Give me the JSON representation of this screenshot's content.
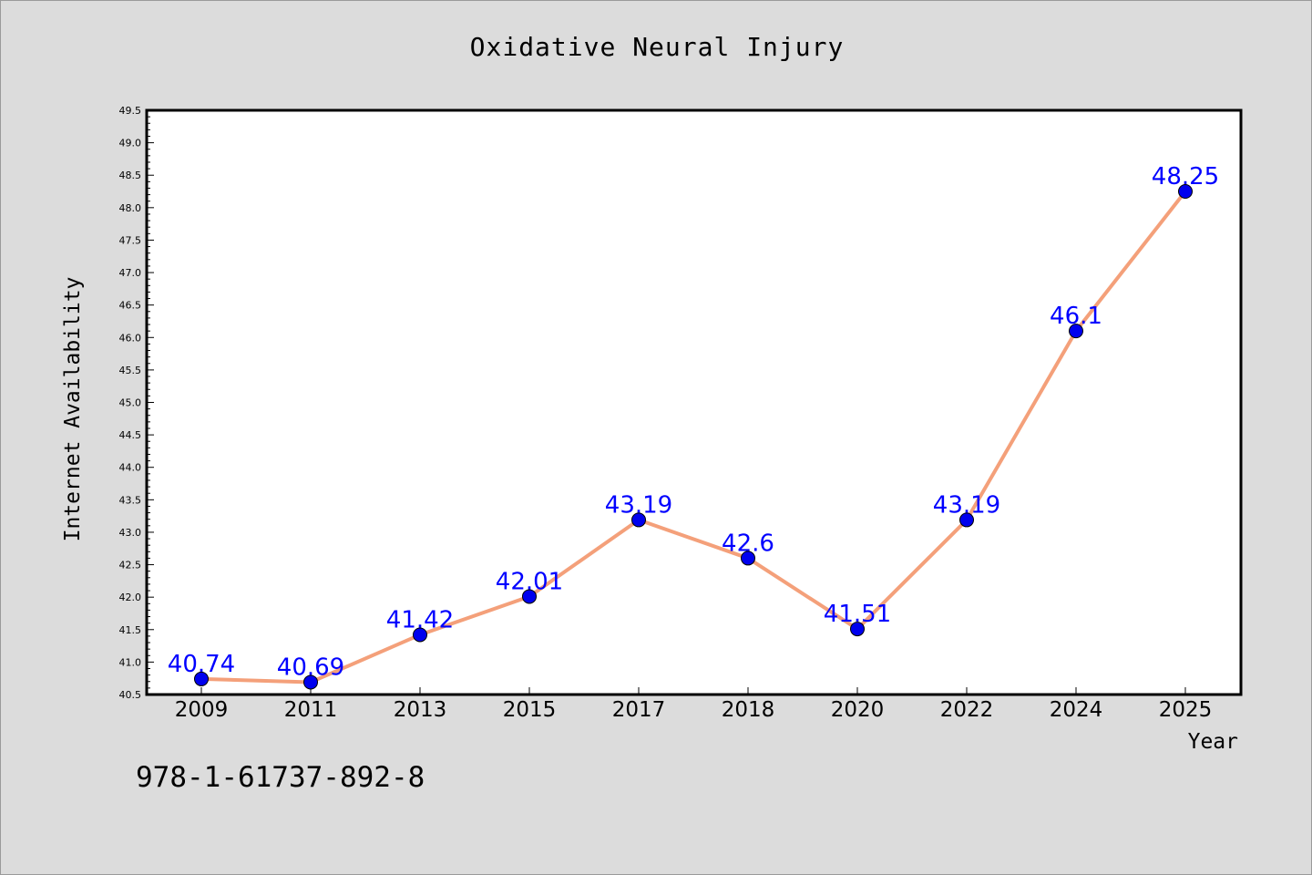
{
  "chart_data": {
    "type": "line",
    "title": "Oxidative Neural Injury",
    "xlabel": "Year",
    "ylabel": "Internet Availability",
    "categories": [
      "2009",
      "2011",
      "2013",
      "2015",
      "2017",
      "2018",
      "2020",
      "2022",
      "2024",
      "2025"
    ],
    "series": [
      {
        "values": [
          40.74,
          40.69,
          41.42,
          42.01,
          43.19,
          42.6,
          41.51,
          43.19,
          46.1,
          48.25
        ],
        "data_labels": [
          "40.74",
          "40.69",
          "41.42",
          "42.01",
          "43.19",
          "42.6",
          "41.51",
          "43.19",
          "46.1",
          "48.25"
        ],
        "line_color": "#f4a07a",
        "marker_color": "#0000ee"
      }
    ],
    "ylim": [
      40.5,
      49.5
    ],
    "yticks": [
      "40.5",
      "41.0",
      "41.5",
      "42.0",
      "42.5",
      "43.0",
      "43.5",
      "44.0",
      "44.5",
      "45.0",
      "45.5",
      "46.0",
      "46.5",
      "47.0",
      "47.5",
      "48.0",
      "48.5",
      "49.0",
      "49.5"
    ],
    "grid": false,
    "legend": "none",
    "data_label_color": "#0000ff"
  },
  "footer": {
    "code": "978-1-61737-892-8"
  }
}
